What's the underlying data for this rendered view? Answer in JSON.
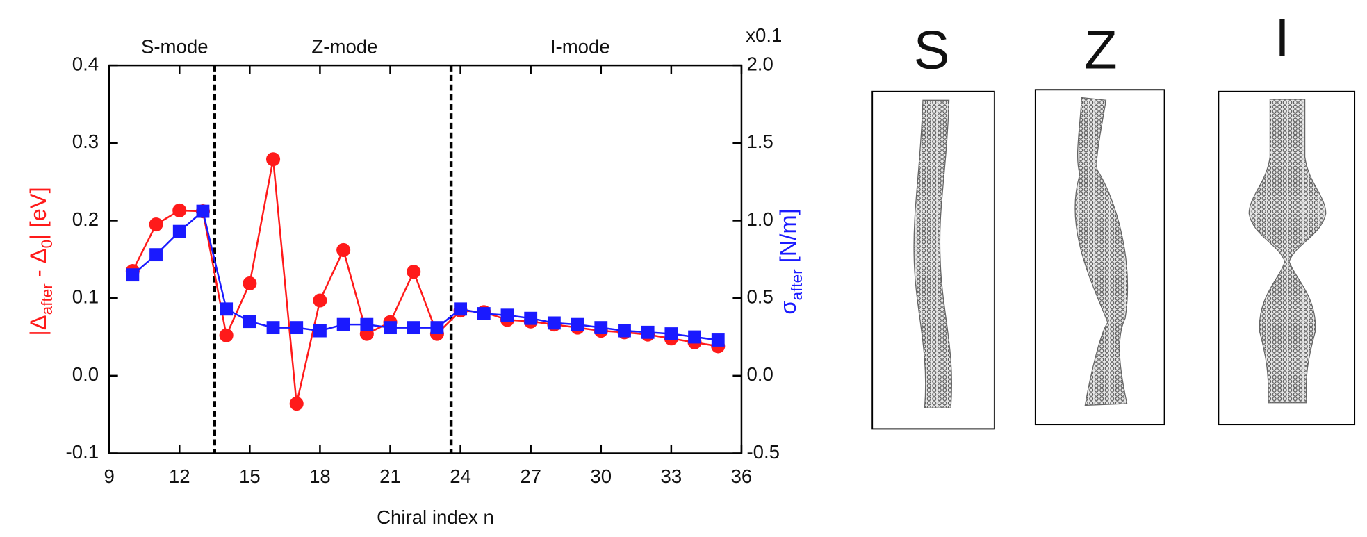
{
  "chart_data": {
    "type": "line",
    "xlabel": "Chiral index n",
    "ylabel": [
      "|Δ",
      "after",
      " - Δ",
      "0",
      "| [eV]"
    ],
    "y2label": [
      "σ",
      "after",
      " [N/m]"
    ],
    "y2_multiplier": "x0.1",
    "annotations": [
      "S-mode",
      "Z-mode",
      "I-mode"
    ],
    "vlines": [
      13.5,
      23.6
    ],
    "x": [
      10,
      11,
      12,
      13,
      14,
      15,
      16,
      17,
      18,
      19,
      20,
      21,
      22,
      23,
      24,
      25,
      26,
      27,
      28,
      29,
      30,
      31,
      32,
      33,
      34,
      35
    ],
    "series": [
      {
        "color": "#ff1a1a",
        "marker": "circle",
        "values": [
          0.135,
          0.195,
          0.213,
          0.212,
          0.052,
          0.119,
          0.279,
          -0.036,
          0.097,
          0.162,
          0.054,
          0.069,
          0.134,
          0.054,
          0.084,
          0.082,
          0.072,
          0.07,
          0.066,
          0.062,
          0.058,
          0.056,
          0.053,
          0.048,
          0.043,
          0.038
        ]
      },
      {
        "color": "#1a1aff",
        "marker": "square",
        "axis": "y2",
        "values": [
          0.65,
          0.78,
          0.93,
          1.06,
          0.43,
          0.35,
          0.31,
          0.31,
          0.29,
          0.33,
          0.33,
          0.31,
          0.31,
          0.31,
          0.43,
          0.4,
          0.39,
          0.37,
          0.34,
          0.33,
          0.31,
          0.29,
          0.28,
          0.27,
          0.25,
          0.23
        ]
      }
    ],
    "xlim": [
      9,
      36
    ],
    "xticks": [
      9,
      12,
      15,
      18,
      21,
      24,
      27,
      30,
      33,
      36
    ],
    "ylim": [
      -0.1,
      0.4
    ],
    "yticks": [
      -0.1,
      {
        "value": 0,
        "label": "0.0"
      },
      0.1,
      0.2,
      0.3,
      0.4
    ],
    "y2lim": [
      -0.5,
      2.0
    ],
    "y2ticks": [
      -0.5,
      {
        "value": 0,
        "label": "0.0"
      },
      0.5,
      {
        "value": 1,
        "label": "1.0"
      },
      1.5,
      {
        "value": 2,
        "label": "2.0"
      }
    ],
    "grid": false
  },
  "panels": [
    {
      "label": "S"
    },
    {
      "label": "Z"
    },
    {
      "label": "I"
    }
  ]
}
